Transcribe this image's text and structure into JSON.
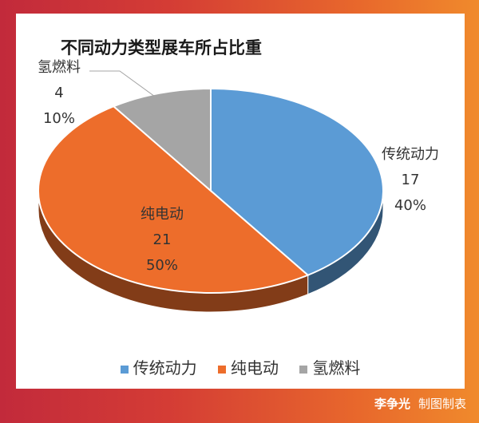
{
  "chart_data": {
    "type": "pie",
    "title": "不同动力类型展车所占比重",
    "slices": [
      {
        "label": "传统动力",
        "value": 17,
        "percent": "40%",
        "color": "#5b9bd5"
      },
      {
        "label": "纯电动",
        "value": 21,
        "percent": "50%",
        "color": "#ed6d2b"
      },
      {
        "label": "氢燃料",
        "value": 4,
        "percent": "10%",
        "color": "#a5a5a5"
      }
    ],
    "legend_position": "bottom",
    "style": "3d"
  },
  "credit": {
    "name": "李争光",
    "note": "制图制表"
  }
}
